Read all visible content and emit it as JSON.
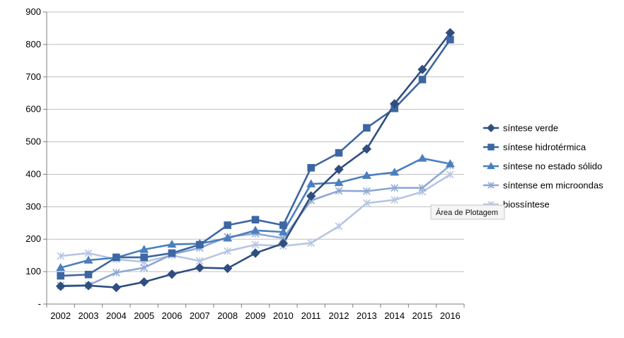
{
  "tooltip": "Área de Plotagem",
  "colors": {
    "background": "#ffffff",
    "gridline": "#bfbfbf",
    "axis": "#7f7f7f"
  },
  "chart_data": {
    "type": "line",
    "title": "",
    "xlabel": "",
    "ylabel": "",
    "categories": [
      "2002",
      "2003",
      "2004",
      "2005",
      "2006",
      "2007",
      "2008",
      "2009",
      "2010",
      "2011",
      "2012",
      "2013",
      "2014",
      "2015",
      "2016"
    ],
    "ylim": [
      0,
      900
    ],
    "yticks": [
      0,
      100,
      200,
      300,
      400,
      500,
      600,
      700,
      800,
      900
    ],
    "ytick_labels": [
      "-",
      "100",
      "200",
      "300",
      "400",
      "500",
      "600",
      "700",
      "800",
      "900"
    ],
    "grid": true,
    "legend": "right",
    "series": [
      {
        "name": "síntese verde",
        "color": "#2f4e80",
        "marker": "diamond",
        "values": [
          55,
          57,
          51,
          68,
          92,
          112,
          110,
          157,
          187,
          333,
          415,
          478,
          617,
          723,
          836
        ]
      },
      {
        "name": "síntese hidrotérmica",
        "color": "#3d66a3",
        "marker": "square",
        "values": [
          87,
          91,
          144,
          144,
          157,
          183,
          243,
          260,
          243,
          420,
          466,
          543,
          603,
          692,
          815
        ]
      },
      {
        "name": "síntese no estado sólido",
        "color": "#4a7fbe",
        "marker": "triangle",
        "values": [
          112,
          135,
          143,
          168,
          184,
          186,
          203,
          227,
          222,
          370,
          374,
          396,
          406,
          449,
          432
        ]
      },
      {
        "name": "síntense em microondas",
        "color": "#8ea8d4",
        "marker": "x",
        "values": [
          57,
          58,
          97,
          112,
          153,
          173,
          207,
          217,
          203,
          319,
          349,
          348,
          358,
          358,
          427
        ]
      },
      {
        "name": "biossíntese",
        "color": "#b8c5e2",
        "marker": "x",
        "values": [
          148,
          157,
          138,
          130,
          150,
          133,
          163,
          183,
          179,
          188,
          240,
          311,
          321,
          346,
          399
        ]
      }
    ]
  }
}
